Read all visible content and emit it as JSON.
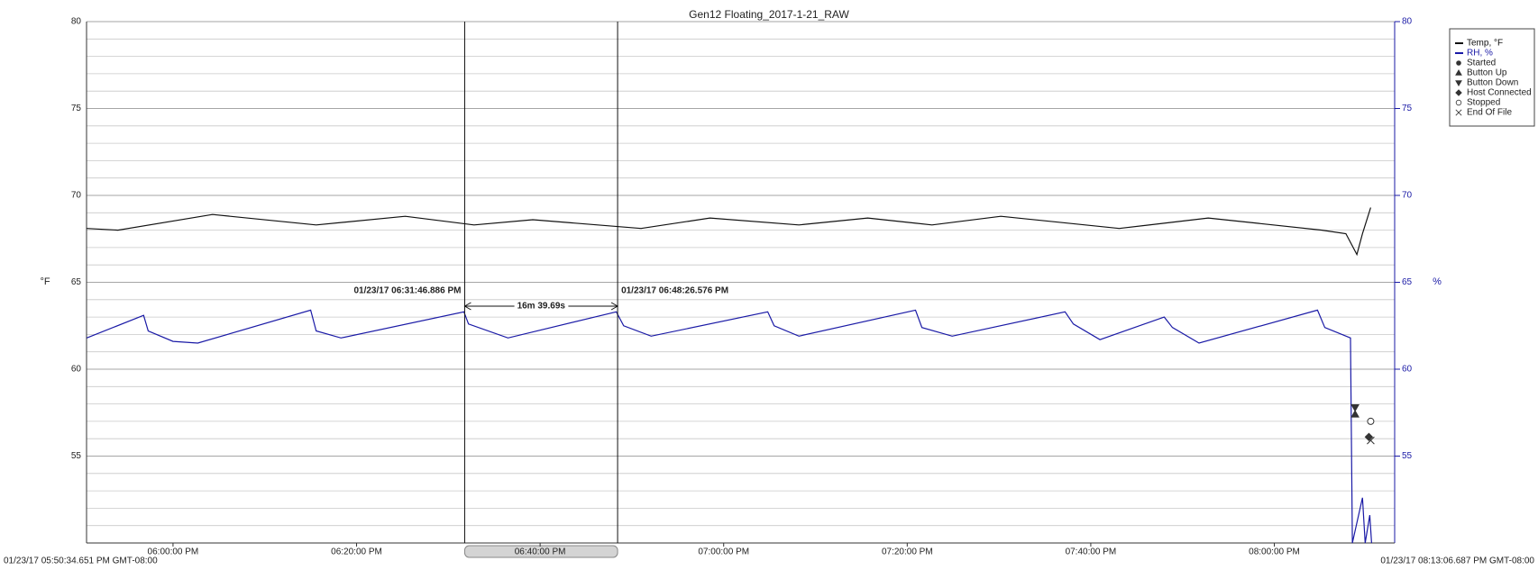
{
  "chart_data": {
    "type": "line",
    "title": "Gen12 Floating_2017-1-21_RAW",
    "ylabel": "°F",
    "y2label": "%",
    "xlim": [
      {
        "value": "05:50:34.651 PM",
        "label": "01/23/17 05:50:34.651 PM GMT-08:00"
      },
      {
        "value": "08:13:06.687 PM",
        "label": "01/23/17 08:13:06.687 PM GMT-08:00"
      }
    ],
    "xticks": [
      "06:00:00 PM",
      "06:20:00 PM",
      "06:40:00 PM",
      "07:00:00 PM",
      "07:20:00 PM",
      "07:40:00 PM",
      "08:00:00 PM"
    ],
    "ylim": [
      50,
      80
    ],
    "yticks": [
      55,
      60,
      65,
      70,
      75,
      80
    ],
    "y2lim": [
      50,
      80
    ],
    "y2ticks": [
      55,
      60,
      65,
      70,
      75,
      80
    ],
    "y2color": "#1a1aa6",
    "y_minor_ticks": [
      51,
      52,
      53,
      54,
      56,
      57,
      58,
      59,
      61,
      62,
      63,
      64,
      66,
      67,
      68,
      69,
      71,
      72,
      73,
      74,
      76,
      77,
      78,
      79
    ],
    "grid": true,
    "legend": "upper right",
    "series": [
      {
        "name": "Temp, °F",
        "color": "#111111",
        "x": [
          "05:50:36 PM",
          "05:54:00 PM",
          "06:04:18 PM",
          "06:15:36 PM",
          "06:25:18 PM",
          "06:32:48 PM",
          "06:39:12 PM",
          "06:51:00 PM",
          "06:58:30 PM",
          "07:08:12 PM",
          "07:15:42 PM",
          "07:22:42 PM",
          "07:30:12 PM",
          "07:43:06 PM",
          "07:52:48 PM",
          "08:05:12 PM",
          "08:07:48 PM",
          "08:09:00 PM",
          "08:09:36 PM",
          "08:10:30 PM"
        ],
        "values": [
          68.1,
          68.0,
          68.9,
          68.3,
          68.8,
          68.3,
          68.6,
          68.1,
          68.7,
          68.3,
          68.7,
          68.3,
          68.8,
          68.1,
          68.7,
          68.0,
          67.8,
          66.6,
          67.8,
          69.3
        ]
      },
      {
        "name": "RH, %",
        "color": "#1a1aa6",
        "axis": "y2",
        "x": [
          "05:50:36 PM",
          "05:56:48 PM",
          "05:57:18 PM",
          "06:00:00 PM",
          "06:02:42 PM",
          "06:15:00 PM",
          "06:15:36 PM",
          "06:18:18 PM",
          "06:31:42 PM",
          "06:32:12 PM",
          "06:36:30 PM",
          "06:48:18 PM",
          "06:49:06 PM",
          "06:52:06 PM",
          "07:04:48 PM",
          "07:05:30 PM",
          "07:08:12 PM",
          "07:20:54 PM",
          "07:21:36 PM",
          "07:24:54 PM",
          "07:37:12 PM",
          "07:38:06 PM",
          "07:41:00 PM",
          "07:48:00 PM",
          "07:48:54 PM",
          "07:51:48 PM",
          "08:04:42 PM",
          "08:05:30 PM",
          "08:08:18 PM",
          "08:08:30 PM",
          "08:09:36 PM",
          "08:09:54 PM",
          "08:10:24 PM",
          "08:10:36 PM"
        ],
        "values": [
          61.8,
          63.1,
          62.2,
          61.6,
          61.5,
          63.4,
          62.2,
          61.8,
          63.3,
          62.6,
          61.8,
          63.3,
          62.5,
          61.9,
          63.3,
          62.5,
          61.9,
          63.4,
          62.4,
          61.9,
          63.3,
          62.6,
          61.7,
          63.0,
          62.4,
          61.5,
          63.4,
          62.4,
          61.8,
          50.0,
          52.6,
          50.0,
          51.6,
          50.0
        ]
      }
    ],
    "events": [
      {
        "name": "Started",
        "symbol": "dot",
        "x": [],
        "values": []
      },
      {
        "name": "Button Up",
        "symbol": "up",
        "x": [
          "08:08:48 PM"
        ],
        "values": [
          57.4
        ]
      },
      {
        "name": "Button Down",
        "symbol": "down",
        "x": [
          "08:08:48 PM"
        ],
        "values": [
          57.8
        ]
      },
      {
        "name": "Host Connected",
        "symbol": "diamond",
        "x": [
          "08:10:18 PM"
        ],
        "values": [
          56.1
        ]
      },
      {
        "name": "Stopped",
        "symbol": "circle",
        "x": [
          "08:10:30 PM"
        ],
        "values": [
          57.0
        ]
      },
      {
        "name": "End Of File",
        "symbol": "cross",
        "x": [
          "08:10:30 PM"
        ],
        "values": [
          55.9
        ]
      }
    ],
    "cursors": [
      {
        "x": "06:31:46.886 PM",
        "label": "01/23/17 06:31:46.886 PM"
      },
      {
        "x": "06:48:26.576 PM",
        "label": "01/23/17 06:48:26.576 PM"
      }
    ],
    "cursor_delta": "16m 39.69s"
  }
}
